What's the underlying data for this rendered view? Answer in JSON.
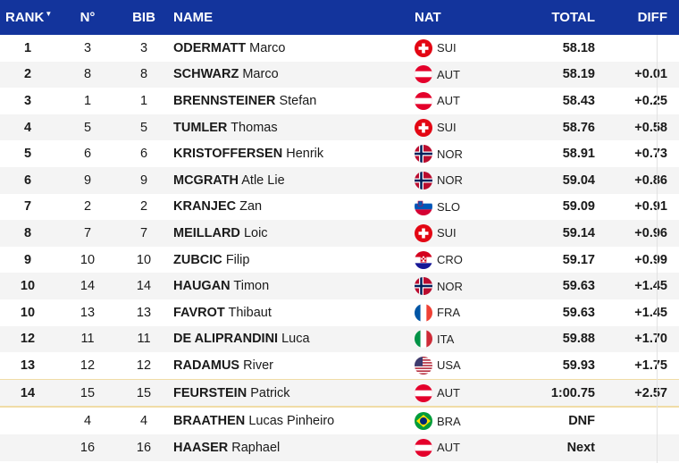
{
  "header": {
    "rank": "RANK",
    "no": "N°",
    "bib": "BIB",
    "name": "NAME",
    "nat": "NAT",
    "total": "TOTAL",
    "diff": "DIFF"
  },
  "rows": [
    {
      "rank": "1",
      "no": "3",
      "bib": "3",
      "last": "ODERMATT",
      "first": "Marco",
      "nat": "SUI",
      "flag": "swiss-flag-icon",
      "total": "58.18",
      "diff": ""
    },
    {
      "rank": "2",
      "no": "8",
      "bib": "8",
      "last": "SCHWARZ",
      "first": "Marco",
      "nat": "AUT",
      "flag": "austria-flag-icon",
      "total": "58.19",
      "diff": "+0.01"
    },
    {
      "rank": "3",
      "no": "1",
      "bib": "1",
      "last": "BRENNSTEINER",
      "first": "Stefan",
      "nat": "AUT",
      "flag": "austria-flag-icon",
      "total": "58.43",
      "diff": "+0.25"
    },
    {
      "rank": "4",
      "no": "5",
      "bib": "5",
      "last": "TUMLER",
      "first": "Thomas",
      "nat": "SUI",
      "flag": "swiss-flag-icon",
      "total": "58.76",
      "diff": "+0.58"
    },
    {
      "rank": "5",
      "no": "6",
      "bib": "6",
      "last": "KRISTOFFERSEN",
      "first": "Henrik",
      "nat": "NOR",
      "flag": "norway-flag-icon",
      "total": "58.91",
      "diff": "+0.73"
    },
    {
      "rank": "6",
      "no": "9",
      "bib": "9",
      "last": "MCGRATH",
      "first": "Atle Lie",
      "nat": "NOR",
      "flag": "norway-flag-icon",
      "total": "59.04",
      "diff": "+0.86"
    },
    {
      "rank": "7",
      "no": "2",
      "bib": "2",
      "last": "KRANJEC",
      "first": "Zan",
      "nat": "SLO",
      "flag": "slovenia-flag-icon",
      "total": "59.09",
      "diff": "+0.91"
    },
    {
      "rank": "8",
      "no": "7",
      "bib": "7",
      "last": "MEILLARD",
      "first": "Loic",
      "nat": "SUI",
      "flag": "swiss-flag-icon",
      "total": "59.14",
      "diff": "+0.96"
    },
    {
      "rank": "9",
      "no": "10",
      "bib": "10",
      "last": "ZUBCIC",
      "first": "Filip",
      "nat": "CRO",
      "flag": "croatia-flag-icon",
      "total": "59.17",
      "diff": "+0.99"
    },
    {
      "rank": "10",
      "no": "14",
      "bib": "14",
      "last": "HAUGAN",
      "first": "Timon",
      "nat": "NOR",
      "flag": "norway-flag-icon",
      "total": "59.63",
      "diff": "+1.45"
    },
    {
      "rank": "10",
      "no": "13",
      "bib": "13",
      "last": "FAVROT",
      "first": "Thibaut",
      "nat": "FRA",
      "flag": "france-flag-icon",
      "total": "59.63",
      "diff": "+1.45"
    },
    {
      "rank": "12",
      "no": "11",
      "bib": "11",
      "last": "DE ALIPRANDINI",
      "first": "Luca",
      "nat": "ITA",
      "flag": "italy-flag-icon",
      "total": "59.88",
      "diff": "+1.70"
    },
    {
      "rank": "13",
      "no": "12",
      "bib": "12",
      "last": "RADAMUS",
      "first": "River",
      "nat": "USA",
      "flag": "usa-flag-icon",
      "total": "59.93",
      "diff": "+1.75"
    },
    {
      "rank": "14",
      "no": "15",
      "bib": "15",
      "last": "FEURSTEIN",
      "first": "Patrick",
      "nat": "AUT",
      "flag": "austria-flag-icon",
      "total": "1:00.75",
      "diff": "+2.57"
    },
    {
      "rank": "",
      "no": "4",
      "bib": "4",
      "last": "BRAATHEN",
      "first": "Lucas Pinheiro",
      "nat": "BRA",
      "flag": "brazil-flag-icon",
      "total": "DNF",
      "diff": ""
    },
    {
      "rank": "",
      "no": "16",
      "bib": "16",
      "last": "HAASER",
      "first": "Raphael",
      "nat": "AUT",
      "flag": "austria-flag-icon",
      "total": "Next",
      "diff": ""
    }
  ],
  "colors": {
    "header_bg": "#13349c",
    "stripe": "#f4f4f4",
    "separator": "#f0dca6"
  }
}
